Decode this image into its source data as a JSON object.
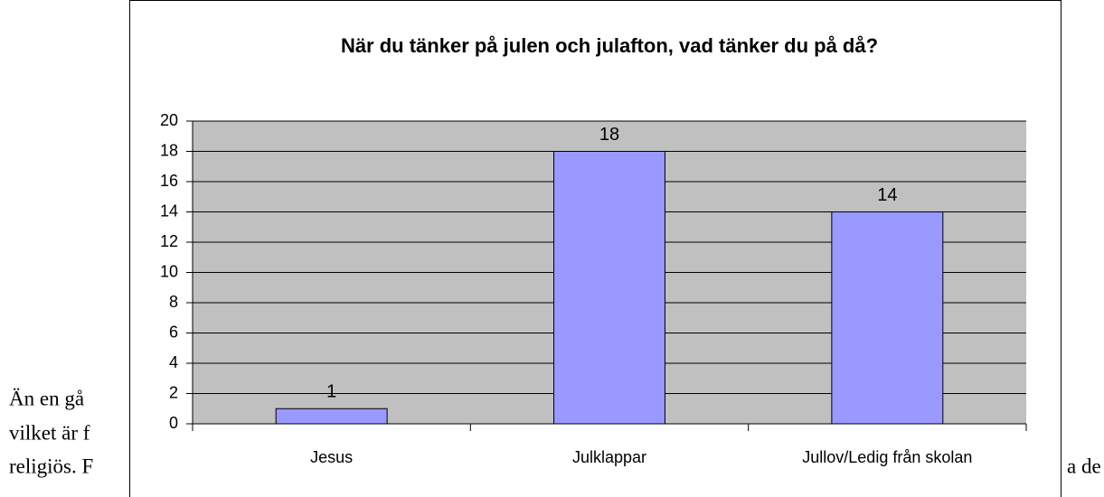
{
  "chart_data": {
    "type": "bar",
    "title": "När du tänker på julen och julafton, vad tänker du på då?",
    "categories": [
      "Jesus",
      "Julklappar",
      "Jullov/Ledig från skolan"
    ],
    "values": [
      1,
      18,
      14
    ],
    "color": "#9999ff",
    "ylim": [
      0,
      20
    ],
    "yticks": [
      0,
      2,
      4,
      6,
      8,
      10,
      12,
      14,
      16,
      18,
      20
    ],
    "grid": true
  },
  "document": {
    "lines": [
      "Än en gå",
      "vilket är f",
      "religiös. F",
      "a de"
    ]
  }
}
